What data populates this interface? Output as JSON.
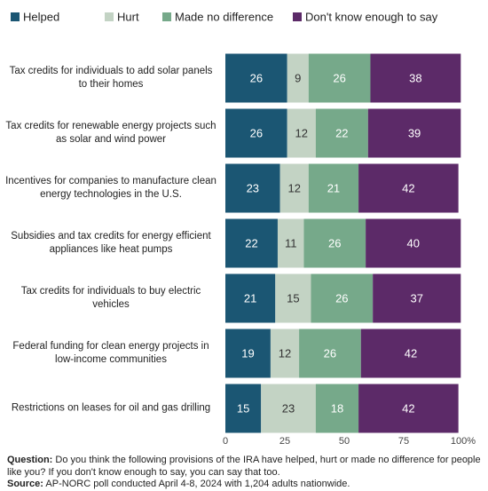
{
  "chart_data": {
    "type": "stacked-bar-horizontal",
    "categories": [
      "Tax credits for individuals to add solar panels to their homes",
      "Tax credits for renewable energy projects such as solar and wind power",
      "Incentives for companies to manufacture clean energy technologies in the U.S.",
      "Subsidies and tax credits for energy efficient appliances like heat pumps",
      "Tax credits for individuals to buy electric vehicles",
      "Federal funding for clean energy projects in low-income communities",
      "Restrictions on leases for oil and gas drilling"
    ],
    "series": [
      {
        "name": "Helped",
        "color": "#1b5673",
        "values": [
          26,
          26,
          23,
          22,
          21,
          19,
          15
        ]
      },
      {
        "name": "Hurt",
        "color": "#c3d3c4",
        "values": [
          9,
          12,
          12,
          11,
          15,
          12,
          23
        ]
      },
      {
        "name": "Made no difference",
        "color": "#76a98a",
        "values": [
          26,
          22,
          21,
          26,
          26,
          26,
          18
        ]
      },
      {
        "name": "Don't know enough to say",
        "color": "#5c2a68",
        "values": [
          38,
          39,
          42,
          40,
          37,
          42,
          42
        ]
      }
    ],
    "xlim": [
      0,
      100
    ],
    "xticks": [
      0,
      25,
      50,
      75,
      {
        "value": 100,
        "label": "100%"
      }
    ],
    "legend": "top",
    "notes": {
      "question_label": "Question:",
      "question": "Do you think the following provisions of the IRA have helped, hurt or made no difference for people like you? If you don't know enough to say, you can say that too.",
      "source_label": "Source:",
      "source": "AP-NORC poll conducted April 4-8, 2024 with 1,204 adults nationwide."
    }
  }
}
